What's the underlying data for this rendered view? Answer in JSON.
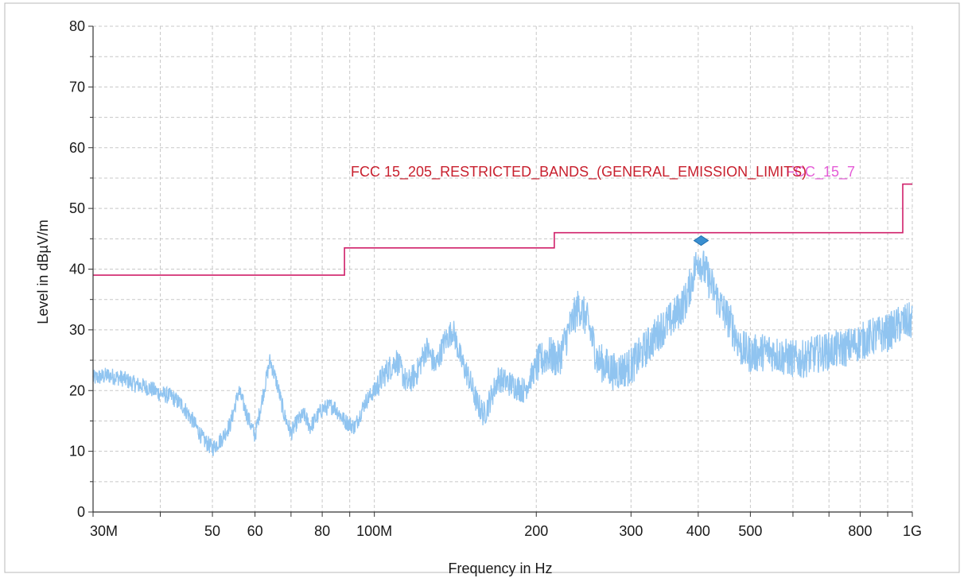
{
  "chart_data": {
    "type": "line",
    "xlabel": "Frequency in Hz",
    "ylabel": "Level in dBµV/m",
    "x_scale": "log",
    "xlim": [
      30000000,
      1000000000
    ],
    "ylim": [
      0,
      80
    ],
    "grid": true,
    "x_ticks": [
      {
        "value": 30000000,
        "label": "30M"
      },
      {
        "value": 50000000,
        "label": "50"
      },
      {
        "value": 60000000,
        "label": "60"
      },
      {
        "value": 80000000,
        "label": "80"
      },
      {
        "value": 100000000,
        "label": "100M"
      },
      {
        "value": 200000000,
        "label": "200"
      },
      {
        "value": 300000000,
        "label": "300"
      },
      {
        "value": 400000000,
        "label": "400"
      },
      {
        "value": 500000000,
        "label": "500"
      },
      {
        "value": 800000000,
        "label": "800"
      },
      {
        "value": 1000000000,
        "label": "1G"
      }
    ],
    "y_ticks": [
      0,
      10,
      20,
      30,
      40,
      50,
      60,
      70,
      80
    ],
    "limit_line": {
      "name": "FCC 15_205_RESTRICTED_BANDS_(GENERAL_EMISSION_LIMITS)",
      "overlapping_label": "FCC_15_7",
      "color": "#d0206a",
      "x": [
        30000000,
        88000000,
        88000000,
        216000000,
        216000000,
        960000000,
        960000000,
        1000000000
      ],
      "y": [
        39,
        39,
        43.5,
        43.5,
        46,
        46,
        54,
        54
      ]
    },
    "marker": {
      "x": 405000000,
      "y": 44.7,
      "color": "#3a8fd0"
    },
    "series": [
      {
        "color": "#90c4f0",
        "x": [
          30000000,
          32000000,
          34000000,
          36000000,
          38000000,
          40000000,
          42000000,
          44000000,
          46000000,
          48000000,
          50000000,
          52000000,
          54000000,
          56000000,
          58000000,
          60000000,
          62000000,
          64000000,
          66000000,
          68000000,
          70000000,
          72000000,
          74000000,
          76000000,
          78000000,
          80000000,
          84000000,
          88000000,
          92000000,
          96000000,
          100000000,
          105000000,
          110000000,
          115000000,
          120000000,
          125000000,
          130000000,
          135000000,
          140000000,
          145000000,
          150000000,
          155000000,
          160000000,
          170000000,
          180000000,
          190000000,
          200000000,
          210000000,
          220000000,
          230000000,
          240000000,
          250000000,
          260000000,
          280000000,
          300000000,
          320000000,
          340000000,
          360000000,
          380000000,
          400000000,
          420000000,
          440000000,
          460000000,
          480000000,
          500000000,
          540000000,
          580000000,
          620000000,
          660000000,
          700000000,
          750000000,
          800000000,
          850000000,
          900000000,
          950000000,
          1000000000
        ],
        "y": [
          22,
          22.5,
          22,
          21,
          20.5,
          19.5,
          19,
          17.5,
          15,
          12,
          10.5,
          12,
          14.5,
          20,
          16,
          12.5,
          19,
          25,
          21,
          16,
          13,
          15,
          16,
          14,
          15.5,
          17,
          17.5,
          15,
          14,
          18,
          20,
          23,
          25,
          21,
          23,
          27,
          24,
          28,
          30,
          25,
          22,
          18,
          16,
          22,
          21,
          20,
          24,
          26,
          25,
          30,
          34,
          31,
          25,
          23,
          24,
          27,
          30,
          32,
          35,
          42,
          38,
          34,
          31,
          27,
          26,
          26.5,
          25.5,
          25,
          26,
          26.5,
          27,
          28,
          29,
          29.5,
          31,
          31.5
        ]
      }
    ]
  }
}
